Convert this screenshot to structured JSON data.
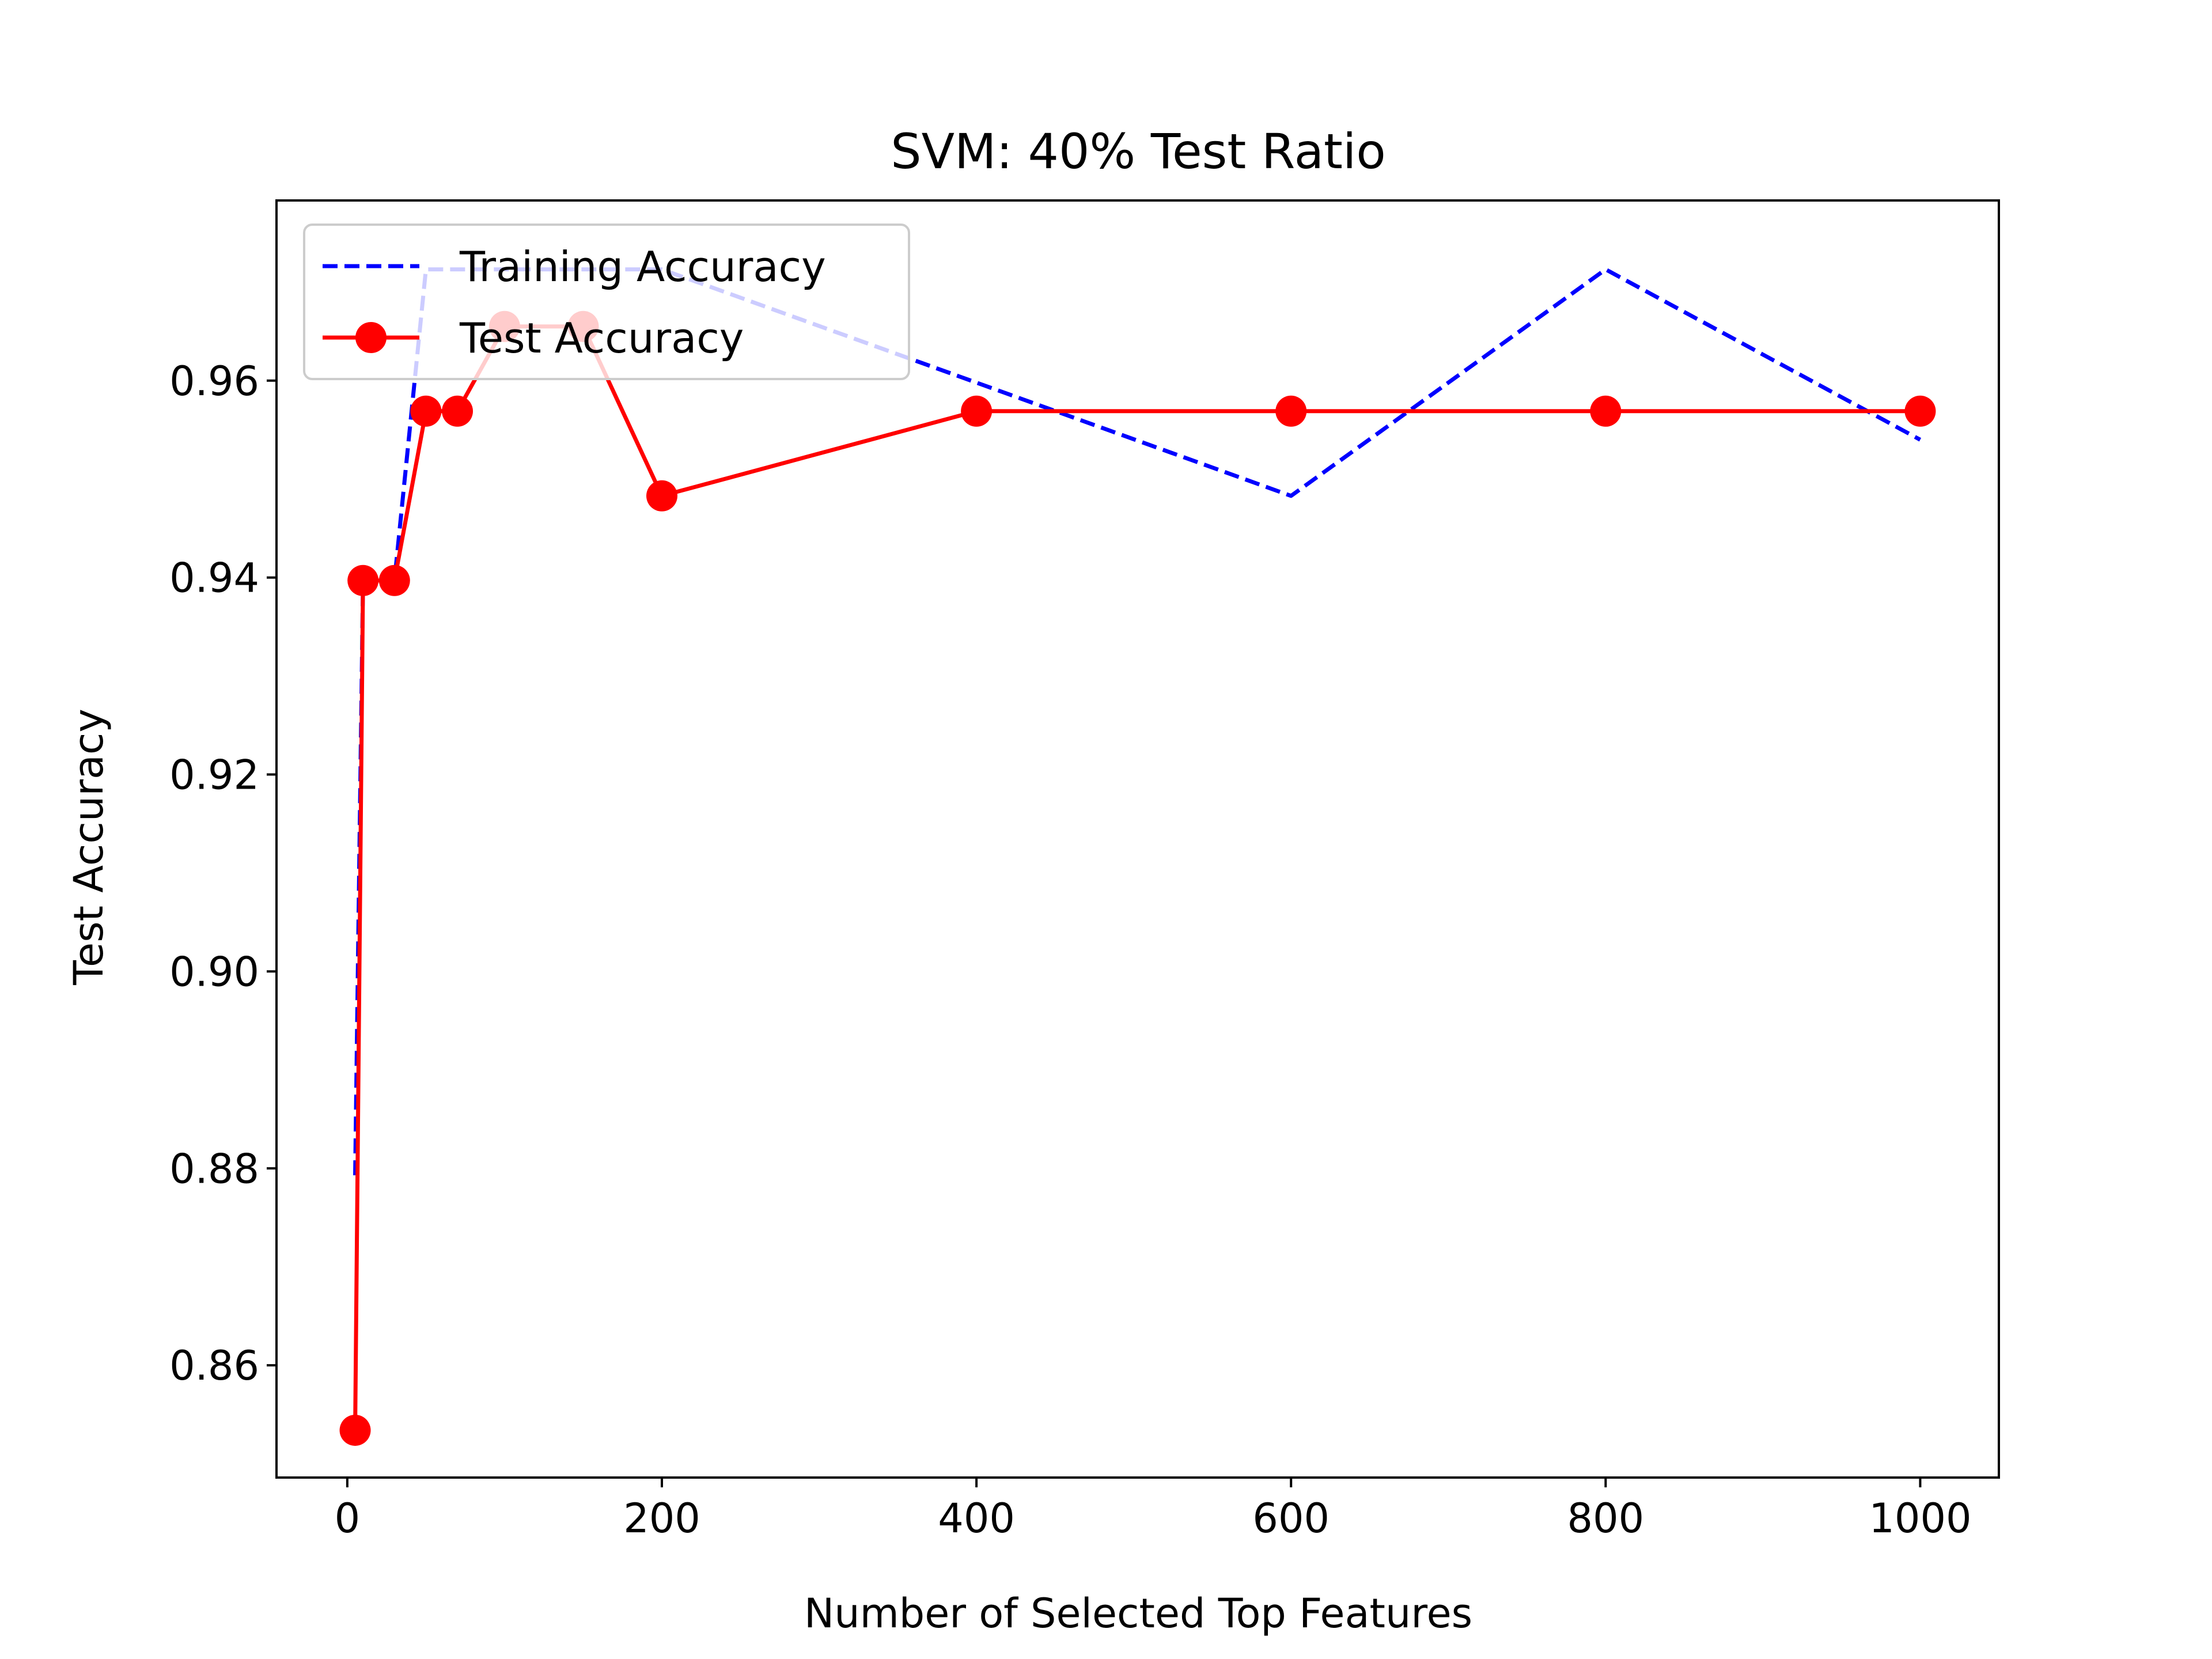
{
  "chart_data": {
    "type": "line",
    "title": "SVM: 40% Test Ratio",
    "xlabel": "Number of Selected Top Features",
    "ylabel": "Test Accuracy",
    "xlim": [
      -45,
      1050
    ],
    "ylim": [
      0.8486,
      0.9783
    ],
    "xticks": [
      0,
      200,
      400,
      600,
      800,
      1000
    ],
    "yticks": [
      0.86,
      0.88,
      0.9,
      0.92,
      0.94,
      0.96
    ],
    "xtick_labels": [
      "0",
      "200",
      "400",
      "600",
      "800",
      "1000"
    ],
    "ytick_labels": [
      "0.86",
      "0.88",
      "0.90",
      "0.92",
      "0.94",
      "0.96"
    ],
    "grid": false,
    "legend_position": "top-left",
    "series": [
      {
        "name": "Training Accuracy",
        "color": "#0000ff",
        "style": "dashed",
        "marker": "none",
        "x": [
          5,
          10,
          30,
          50,
          70,
          100,
          150,
          200,
          400,
          600,
          800,
          1000
        ],
        "y": [
          0.8793,
          0.9397,
          0.9397,
          0.9713,
          0.9713,
          0.9713,
          0.9713,
          0.9713,
          0.9598,
          0.9483,
          0.9713,
          0.954
        ]
      },
      {
        "name": "Test Accuracy",
        "color": "#ff0000",
        "style": "solid",
        "marker": "circle",
        "x": [
          5,
          10,
          30,
          50,
          70,
          100,
          150,
          200,
          400,
          600,
          800,
          1000
        ],
        "y": [
          0.8534,
          0.9397,
          0.9397,
          0.9569,
          0.9569,
          0.9655,
          0.9655,
          0.9483,
          0.9569,
          0.9569,
          0.9569,
          0.9569
        ]
      }
    ]
  }
}
